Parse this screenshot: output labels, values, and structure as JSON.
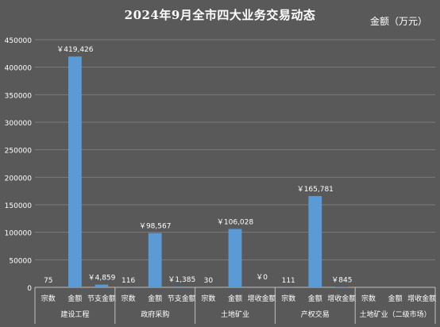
{
  "chart_data": {
    "type": "bar",
    "title": "2024年9月全市四大业务交易动态",
    "unit_label": "金额（万元）",
    "ylim": [
      0,
      450000
    ],
    "yticks": [
      "0",
      "50000",
      "100000",
      "150000",
      "200000",
      "250000",
      "300000",
      "350000",
      "400000",
      "450000"
    ],
    "grid": true,
    "bar_color": "#5b9bd5",
    "groups": [
      {
        "name": "建设工程",
        "bars": [
          {
            "label": "宗数",
            "value": 75,
            "data_label": "75"
          },
          {
            "label": "金额",
            "value": 419426,
            "data_label": "￥419,426"
          },
          {
            "label": "节支金额",
            "value": 4859,
            "data_label": "￥4,859"
          }
        ]
      },
      {
        "name": "政府采购",
        "bars": [
          {
            "label": "宗数",
            "value": 116,
            "data_label": "116"
          },
          {
            "label": "金额",
            "value": 98567,
            "data_label": "￥98,567"
          },
          {
            "label": "节支金额",
            "value": 1385,
            "data_label": "￥1,385"
          }
        ]
      },
      {
        "name": "土地矿业",
        "bars": [
          {
            "label": "宗数",
            "value": 30,
            "data_label": "30"
          },
          {
            "label": "金额",
            "value": 106028,
            "data_label": "￥106,028"
          },
          {
            "label": "增收金额",
            "value": 0,
            "data_label": "￥0"
          }
        ]
      },
      {
        "name": "产权交易",
        "bars": [
          {
            "label": "宗数",
            "value": 111,
            "data_label": "111"
          },
          {
            "label": "金额",
            "value": 165781,
            "data_label": "￥165,781"
          },
          {
            "label": "增收金额",
            "value": 845,
            "data_label": "￥845"
          }
        ]
      },
      {
        "name": "土地矿业（二级市场）",
        "bars": [
          {
            "label": "宗数",
            "value": 0,
            "data_label": ""
          },
          {
            "label": "金额",
            "value": 0,
            "data_label": ""
          },
          {
            "label": "增收金额",
            "value": 0,
            "data_label": ""
          }
        ]
      }
    ]
  }
}
